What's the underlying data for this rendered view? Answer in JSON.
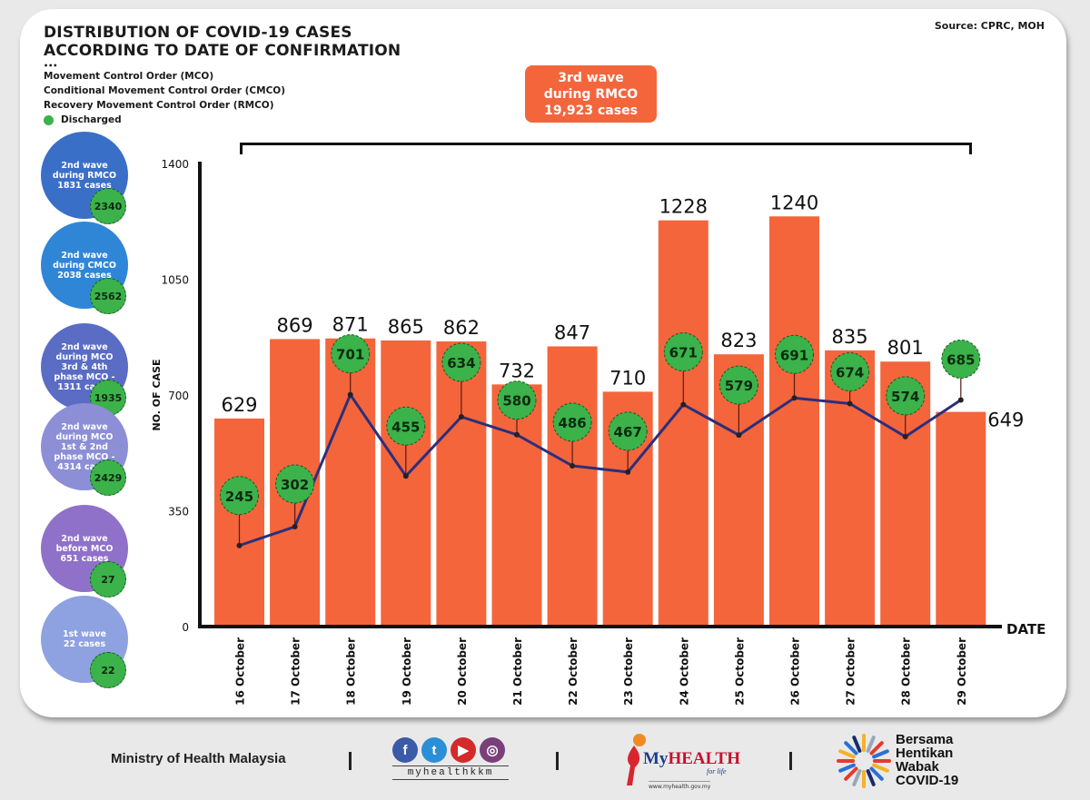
{
  "header": {
    "title_line1": "DISTRIBUTION OF COVID-19 CASES",
    "title_line2": "ACCORDING TO DATE OF CONFIRMATION",
    "dots": "•••",
    "legend": [
      "Movement Control Order (MCO)",
      "Conditional Movement Control Order (CMCO)",
      "Recovery Movement Control Order (RMCO)"
    ],
    "discharged_label": "Discharged",
    "source": "Source: CPRC, MOH"
  },
  "colors": {
    "bar": "#f4653c",
    "discharged": "#3bb24a",
    "line": "#2b2f7a",
    "axis": "#111111"
  },
  "third_wave": {
    "line1": "3rd wave",
    "line2": "during RMCO",
    "line3": "19,923 cases"
  },
  "waves": [
    {
      "lines": [
        "2nd wave",
        "during RMCO",
        "1831 cases"
      ],
      "discharged": "2340",
      "color": "#3a6fc8"
    },
    {
      "lines": [
        "2nd wave",
        "during CMCO",
        "2038 cases"
      ],
      "discharged": "2562",
      "color": "#2f86d6"
    },
    {
      "lines": [
        "2nd wave",
        "during MCO",
        "3rd & 4th",
        "phase MCO -",
        "1311 cases"
      ],
      "discharged": "1935",
      "color": "#5a6cc4"
    },
    {
      "lines": [
        "2nd wave",
        "during MCO",
        "1st & 2nd",
        "phase MCO -",
        "4314 cases"
      ],
      "discharged": "2429",
      "color": "#8c8fd6"
    },
    {
      "lines": [
        "2nd wave",
        "before MCO",
        "651 cases"
      ],
      "discharged": "27",
      "color": "#8f71c9"
    },
    {
      "lines": [
        "1st wave",
        "22 cases"
      ],
      "discharged": "22",
      "color": "#8ea1e0"
    }
  ],
  "chart_data": {
    "type": "bar",
    "title": "Distribution of COVID-19 Cases According to Date of Confirmation",
    "xlabel": "DATE",
    "ylabel": "NO. OF CASE",
    "ylim": [
      0,
      1400
    ],
    "yticks": [
      0,
      350,
      700,
      1050,
      1400
    ],
    "grid": false,
    "categories": [
      "16 October",
      "17 October",
      "18 October",
      "19 October",
      "20 October",
      "21 October",
      "22 October",
      "23 October",
      "24 October",
      "25 October",
      "26 October",
      "27 October",
      "28 October",
      "29 October"
    ],
    "series": [
      {
        "name": "Cases",
        "type": "bar",
        "values": [
          629,
          869,
          871,
          865,
          862,
          732,
          847,
          710,
          1228,
          823,
          1240,
          835,
          801,
          649
        ]
      },
      {
        "name": "Discharged",
        "type": "line",
        "values": [
          245,
          302,
          701,
          455,
          634,
          580,
          486,
          467,
          671,
          579,
          691,
          674,
          574,
          685
        ]
      }
    ]
  },
  "footer": {
    "ministry": "Ministry of Health Malaysia",
    "social_handle": "myhealthkkm",
    "social_icons": [
      "facebook-icon",
      "twitter-icon",
      "youtube-icon",
      "instagram-icon"
    ],
    "myhealth_my": "My",
    "myhealth_health": "HEALTH",
    "myhealth_tag": "for life",
    "myhealth_url": "www.myhealth.gov.my",
    "bersama_lines": [
      "Bersama",
      "Hentikan",
      "Wabak",
      "COVID-19"
    ]
  }
}
